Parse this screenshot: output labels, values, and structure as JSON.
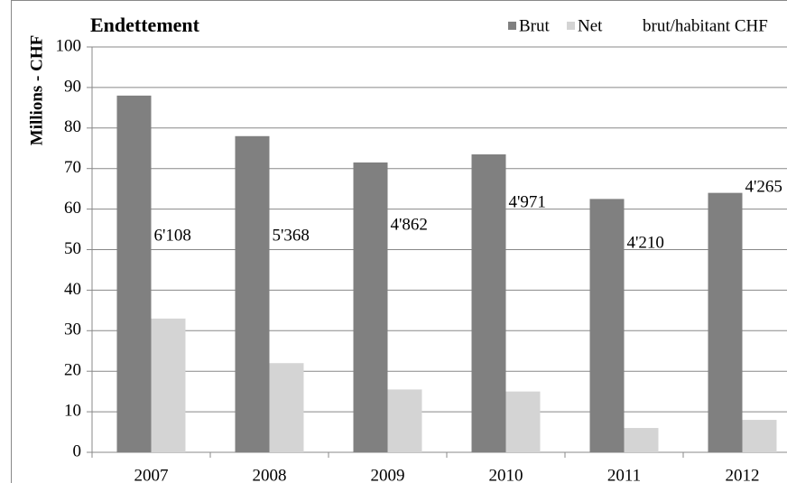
{
  "chart_data": {
    "type": "bar",
    "title": "Endettement",
    "y_label": "Millions - CHF",
    "categories": [
      "2007",
      "2008",
      "2009",
      "2010",
      "2011",
      "2012"
    ],
    "series": [
      {
        "name": "Brut",
        "color": "#808080",
        "values": [
          88,
          78,
          71.5,
          73.5,
          62.5,
          64
        ]
      },
      {
        "name": "Net",
        "color": "#d4d4d4",
        "values": [
          33,
          22,
          15.5,
          15,
          6,
          8
        ]
      },
      {
        "name": "brut/habitant CHF",
        "color": "none",
        "values": [
          6108,
          5368,
          4862,
          4971,
          4210,
          4265
        ],
        "value_labels": [
          "6'108",
          "5'368",
          "4'862",
          "4'971",
          "4'210",
          "4'265"
        ]
      }
    ],
    "ylim": [
      0,
      100
    ],
    "yticks": [
      0,
      10,
      20,
      30,
      40,
      50,
      60,
      70,
      80,
      90,
      100
    ],
    "grid": true,
    "legend": "top-right"
  }
}
